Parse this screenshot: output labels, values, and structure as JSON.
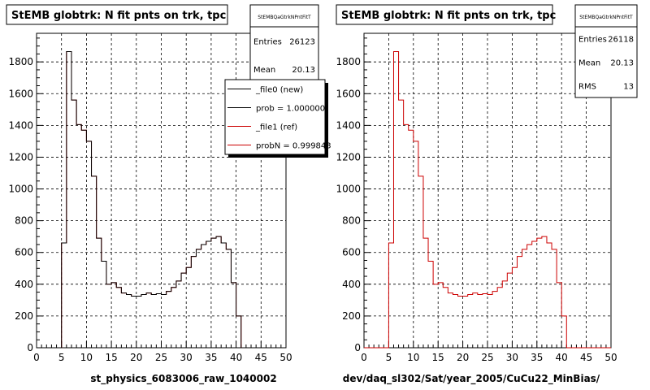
{
  "chart_data": [
    {
      "type": "histogram",
      "title": "StEMB globtrk: N fit pnts on trk, tpc",
      "xlabel": "st_physics_6083006_raw_1040002",
      "ylabel": "",
      "xlim": [
        0,
        50
      ],
      "ylim": [
        0,
        1980
      ],
      "x_ticks": [
        0,
        5,
        10,
        15,
        20,
        25,
        30,
        35,
        40,
        45,
        50
      ],
      "y_ticks": [
        0,
        200,
        400,
        600,
        800,
        1000,
        1200,
        1400,
        1600,
        1800
      ],
      "grid": true,
      "bin_width": 1,
      "bin_edges_start": 0,
      "series": [
        {
          "name": "_file0 (new)",
          "color": "#000000",
          "values": [
            0,
            0,
            0,
            0,
            0,
            660,
            1865,
            1560,
            1405,
            1370,
            1300,
            1080,
            690,
            545,
            400,
            410,
            380,
            345,
            335,
            325,
            325,
            335,
            345,
            335,
            340,
            335,
            355,
            380,
            420,
            470,
            505,
            575,
            620,
            650,
            670,
            690,
            700,
            660,
            620,
            410,
            200,
            0,
            0,
            0,
            0,
            0,
            0,
            0,
            0,
            0
          ]
        },
        {
          "name": "_file1 (ref)",
          "color": "#cc0000",
          "values": [
            0,
            0,
            0,
            0,
            0,
            660,
            1865,
            1560,
            1405,
            1370,
            1300,
            1080,
            690,
            545,
            400,
            410,
            380,
            345,
            335,
            325,
            325,
            335,
            345,
            335,
            340,
            335,
            355,
            380,
            420,
            470,
            505,
            575,
            620,
            650,
            670,
            690,
            700,
            660,
            620,
            410,
            200,
            0,
            0,
            0,
            0,
            0,
            0,
            0,
            0,
            0
          ]
        }
      ],
      "stats": {
        "name": "StEMBQaGtrkNPntFitT",
        "rows": [
          {
            "label": "Entries",
            "value": "26123"
          },
          {
            "label": "Mean",
            "value": "20.13"
          }
        ]
      },
      "legend": {
        "position": "top-right",
        "entries": [
          {
            "label": "_file0 (new)",
            "color": "#000000"
          },
          {
            "label": "prob = 1.000000",
            "color": "#000000"
          },
          {
            "label": "_file1 (ref)",
            "color": "#cc0000"
          },
          {
            "label": "probN = 0.999843",
            "color": "#cc0000"
          }
        ]
      }
    },
    {
      "type": "histogram",
      "title": "StEMB globtrk: N fit pnts on trk, tpc",
      "xlabel": "dev/daq_sl302/Sat/year_2005/CuCu22_MinBias/",
      "ylabel": "",
      "xlim": [
        0,
        50
      ],
      "ylim": [
        0,
        1980
      ],
      "x_ticks": [
        0,
        5,
        10,
        15,
        20,
        25,
        30,
        35,
        40,
        45,
        50
      ],
      "y_ticks": [
        0,
        200,
        400,
        600,
        800,
        1000,
        1200,
        1400,
        1600,
        1800
      ],
      "grid": true,
      "bin_width": 1,
      "bin_edges_start": 0,
      "series": [
        {
          "name": "",
          "color": "#cc0000",
          "values": [
            0,
            0,
            0,
            0,
            0,
            660,
            1865,
            1560,
            1405,
            1370,
            1300,
            1080,
            690,
            545,
            400,
            410,
            380,
            345,
            335,
            325,
            325,
            335,
            345,
            335,
            340,
            335,
            355,
            380,
            420,
            470,
            505,
            575,
            620,
            650,
            670,
            690,
            700,
            660,
            620,
            410,
            200,
            0,
            0,
            0,
            0,
            0,
            0,
            0,
            0,
            0
          ]
        }
      ],
      "stats": {
        "name": "StEMBQaGtrkNPntFitT",
        "rows": [
          {
            "label": "Entries",
            "value": "26118"
          },
          {
            "label": "Mean",
            "value": "20.13"
          },
          {
            "label": "RMS",
            "value": "13"
          }
        ]
      }
    }
  ]
}
